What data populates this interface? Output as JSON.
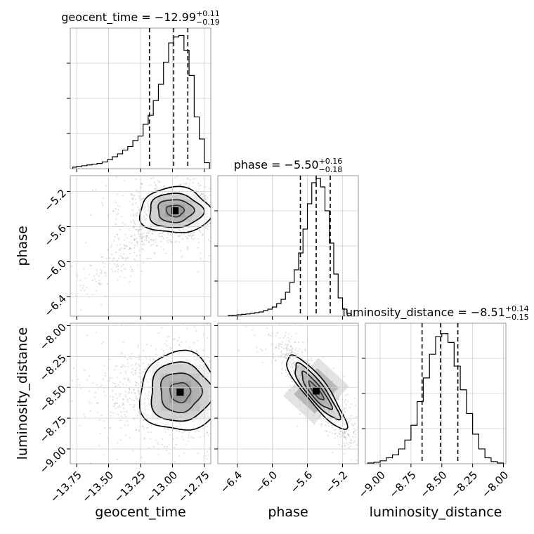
{
  "chart_data": {
    "type": "corner",
    "parameters": [
      "geocent_time",
      "phase",
      "luminosity_distance"
    ],
    "grid": true,
    "panels": [
      {
        "kind": "hist",
        "param": "geocent_time",
        "title": {
          "prefix": "geocent_time = ",
          "value": "−12.99",
          "plus": "+0.11",
          "minus": "−0.19"
        },
        "xlim": [
          -13.8,
          -12.7
        ],
        "quantiles": [
          -13.18,
          -12.99,
          -12.88
        ],
        "bin_edges": [
          -13.78,
          -13.75,
          -13.71,
          -13.67,
          -13.63,
          -13.59,
          -13.55,
          -13.51,
          -13.47,
          -13.43,
          -13.39,
          -13.35,
          -13.31,
          -13.27,
          -13.23,
          -13.19,
          -13.15,
          -13.11,
          -13.07,
          -13.03,
          -12.99,
          -12.95,
          -12.91,
          -12.87,
          -12.83,
          -12.79,
          -12.75,
          -12.71
        ],
        "counts": [
          0.01,
          0.015,
          0.02,
          0.025,
          0.03,
          0.035,
          0.045,
          0.06,
          0.08,
          0.1,
          0.125,
          0.15,
          0.19,
          0.22,
          0.3,
          0.36,
          0.46,
          0.57,
          0.72,
          0.85,
          0.89,
          0.9,
          0.8,
          0.63,
          0.35,
          0.2,
          0.04
        ],
        "ymax": 0.95
      },
      {
        "kind": "hist",
        "param": "phase",
        "title": {
          "prefix": "phase = ",
          "value": "−5.50",
          "plus": "+0.16",
          "minus": "−0.18"
        },
        "xlim": [
          -6.62,
          -5.02
        ],
        "quantiles": [
          -5.68,
          -5.5,
          -5.34
        ],
        "bin_edges": [
          -6.5,
          -6.45,
          -6.4,
          -6.35,
          -6.3,
          -6.25,
          -6.2,
          -6.15,
          -6.1,
          -6.05,
          -6.0,
          -5.95,
          -5.9,
          -5.85,
          -5.8,
          -5.75,
          -5.7,
          -5.65,
          -5.6,
          -5.55,
          -5.5,
          -5.45,
          -5.4,
          -5.35,
          -5.3,
          -5.25,
          -5.2,
          -5.15,
          -5.1
        ],
        "counts": [
          0.005,
          0.007,
          0.01,
          0.013,
          0.016,
          0.02,
          0.025,
          0.03,
          0.04,
          0.05,
          0.065,
          0.09,
          0.12,
          0.17,
          0.24,
          0.33,
          0.45,
          0.62,
          0.8,
          0.95,
          0.98,
          0.92,
          0.75,
          0.52,
          0.3,
          0.13,
          0.05,
          0.02
        ],
        "ymax": 1.0
      },
      {
        "kind": "hist",
        "param": "luminosity_distance",
        "title": {
          "prefix": "luminosity_distance = ",
          "value": "−8.51",
          "plus": "+0.14",
          "minus": "−0.15"
        },
        "xlim": [
          -9.12,
          -7.98
        ],
        "quantiles": [
          -8.66,
          -8.51,
          -8.37
        ],
        "bin_edges": [
          -9.1,
          -9.05,
          -9.0,
          -8.95,
          -8.9,
          -8.85,
          -8.8,
          -8.75,
          -8.7,
          -8.65,
          -8.6,
          -8.55,
          -8.5,
          -8.45,
          -8.4,
          -8.35,
          -8.3,
          -8.25,
          -8.2,
          -8.15,
          -8.1,
          -8.05,
          -8.0
        ],
        "counts": [
          0.005,
          0.01,
          0.02,
          0.04,
          0.06,
          0.1,
          0.16,
          0.26,
          0.42,
          0.58,
          0.74,
          0.86,
          0.88,
          0.82,
          0.66,
          0.5,
          0.34,
          0.2,
          0.1,
          0.04,
          0.015,
          0.005
        ],
        "ymax": 0.95
      },
      {
        "kind": "2d",
        "x": "geocent_time",
        "y": "phase",
        "xlim": [
          -13.8,
          -12.7
        ],
        "ylim": [
          -6.62,
          -5.02
        ],
        "peak": [
          -12.98,
          -5.42
        ],
        "spread": [
          0.14,
          0.13
        ],
        "rho": 0.0,
        "contour_levels": [
          0.5,
          1.0,
          1.5,
          2.0
        ]
      },
      {
        "kind": "2d",
        "x": "geocent_time",
        "y": "luminosity_distance",
        "xlim": [
          -13.8,
          -12.7
        ],
        "ylim": [
          -9.12,
          -7.98
        ],
        "peak": [
          -12.94,
          -8.54
        ],
        "spread": [
          0.16,
          0.16
        ],
        "rho": 0.0,
        "contour_levels": [
          0.5,
          1.0,
          1.5,
          2.0
        ]
      },
      {
        "kind": "2d",
        "x": "phase",
        "y": "luminosity_distance",
        "xlim": [
          -6.62,
          -5.02
        ],
        "ylim": [
          -9.12,
          -7.98
        ],
        "peak": [
          -5.5,
          -8.53
        ],
        "spread": [
          0.17,
          0.15
        ],
        "rho": -0.88,
        "contour_levels": [
          0.5,
          1.0,
          1.5,
          2.0
        ]
      }
    ],
    "ticks": {
      "geocent_time": [
        -13.75,
        -13.5,
        -13.25,
        -13.0,
        -12.75
      ],
      "phase": [
        -6.4,
        -6.0,
        -5.6,
        -5.2
      ],
      "luminosity_distance": [
        -9.0,
        -8.75,
        -8.5,
        -8.25,
        -8.0
      ]
    },
    "tick_labels": {
      "geocent_time": [
        "−13.75",
        "−13.50",
        "−13.25",
        "−13.00",
        "−12.75"
      ],
      "phase": [
        "−6.4",
        "−6.0",
        "−5.6",
        "−5.2"
      ],
      "luminosity_distance": [
        "−9.00",
        "−8.75",
        "−8.50",
        "−8.25",
        "−8.00"
      ]
    },
    "axis_labels": {
      "x": [
        "geocent_time",
        "phase",
        "luminosity_distance"
      ],
      "y": [
        "phase",
        "luminosity_distance"
      ]
    }
  }
}
